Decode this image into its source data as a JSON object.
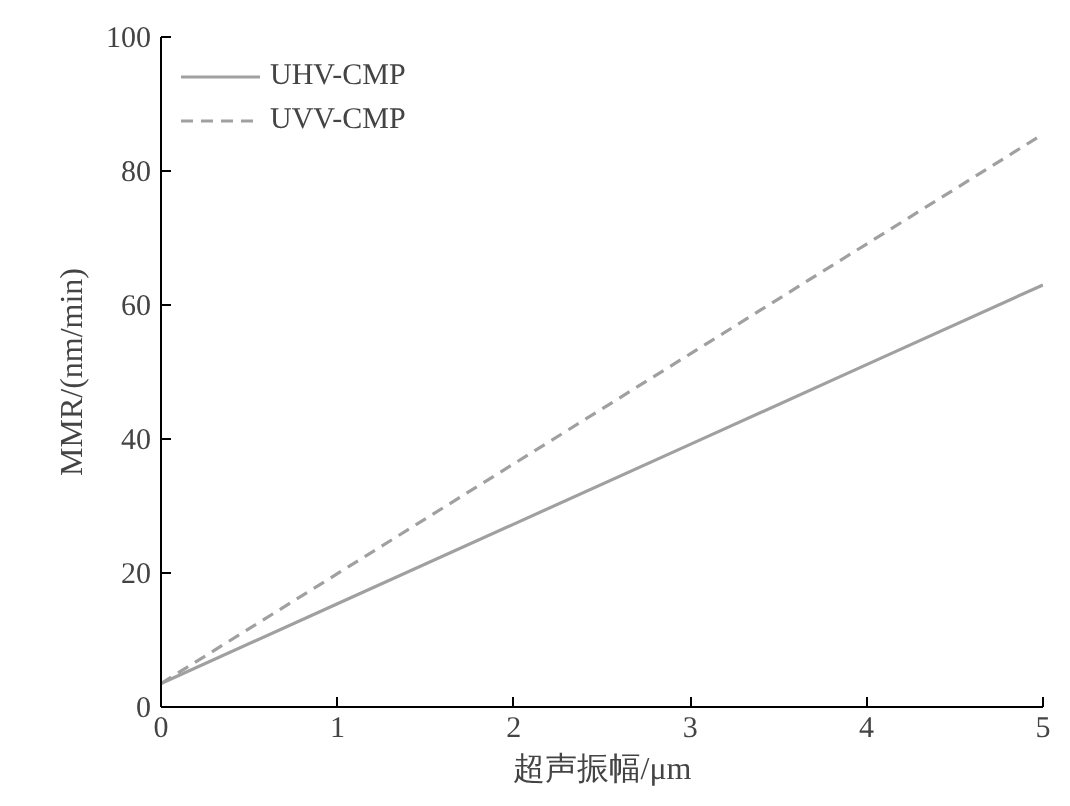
{
  "chart_data": {
    "type": "line",
    "xlabel": "超声振幅/μm",
    "ylabel": "MMR/(nm/min)",
    "x": [
      0,
      1,
      2,
      3,
      4,
      5
    ],
    "series": [
      {
        "name": "UHV-CMP",
        "color": "#a0a0a0",
        "line_style": "solid",
        "values": [
          3.5,
          15.4,
          27.3,
          39.2,
          51.1,
          63
        ]
      },
      {
        "name": "UVV-CMP",
        "color": "#a0a0a0",
        "line_style": "dashed",
        "values": [
          3.5,
          19.9,
          36.3,
          52.7,
          69.1,
          85.5
        ]
      }
    ],
    "xlim": [
      0,
      5
    ],
    "ylim": [
      0,
      100
    ],
    "xticks": [
      0,
      1,
      2,
      3,
      4,
      5
    ],
    "yticks": [
      0,
      20,
      40,
      60,
      80,
      100
    ],
    "grid": false,
    "legend": "top left",
    "marker": "none"
  }
}
